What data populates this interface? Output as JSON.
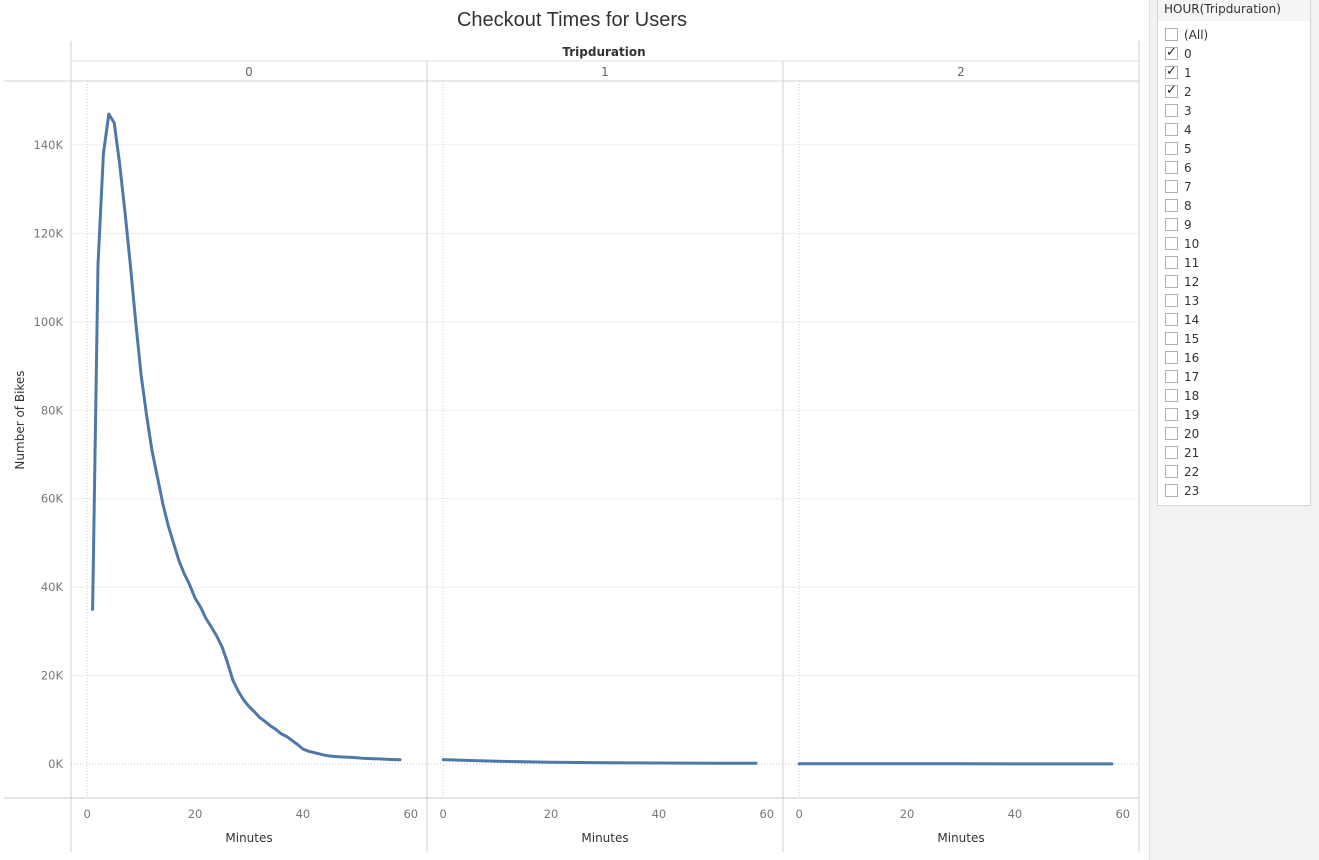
{
  "chart_data": {
    "type": "line",
    "title": "Checkout Times for Users",
    "column_header": "Tripduration",
    "ylabel": "Number of Bikes",
    "xlabel": "Minutes",
    "ylim": [
      0,
      155000
    ],
    "xlim": [
      -3,
      63
    ],
    "y_ticks": [
      {
        "value": 0,
        "label": "0K"
      },
      {
        "value": 20000,
        "label": "20K"
      },
      {
        "value": 40000,
        "label": "40K"
      },
      {
        "value": 60000,
        "label": "60K"
      },
      {
        "value": 80000,
        "label": "80K"
      },
      {
        "value": 100000,
        "label": "100K"
      },
      {
        "value": 120000,
        "label": "120K"
      },
      {
        "value": 140000,
        "label": "140K"
      }
    ],
    "x_ticks": [
      {
        "value": 0,
        "label": "0"
      },
      {
        "value": 20,
        "label": "20"
      },
      {
        "value": 40,
        "label": "40"
      },
      {
        "value": 60,
        "label": "60"
      }
    ],
    "line_color": "#4e79a7",
    "grid": true,
    "series": [
      {
        "name": "0",
        "x": [
          1,
          2,
          3,
          4,
          5,
          6,
          7,
          8,
          9,
          10,
          11,
          12,
          13,
          14,
          15,
          16,
          17,
          18,
          19,
          20,
          21,
          22,
          23,
          24,
          25,
          26,
          27,
          28,
          29,
          30,
          31,
          32,
          33,
          34,
          35,
          36,
          37,
          38,
          39,
          40,
          41,
          42,
          43,
          44,
          45,
          46,
          47,
          48,
          49,
          50,
          51,
          52,
          53,
          54,
          55,
          56,
          57,
          58
        ],
        "y": [
          35000,
          113000,
          138000,
          147000,
          145000,
          136000,
          125000,
          113000,
          100000,
          88000,
          79000,
          71000,
          65000,
          59000,
          54000,
          50000,
          46000,
          43000,
          40500,
          37500,
          35500,
          33000,
          31000,
          29000,
          26500,
          23000,
          19000,
          16500,
          14500,
          13000,
          11800,
          10500,
          9600,
          8600,
          7800,
          6800,
          6200,
          5300,
          4400,
          3400,
          2900,
          2600,
          2300,
          2000,
          1800,
          1700,
          1600,
          1550,
          1500,
          1400,
          1300,
          1250,
          1200,
          1150,
          1100,
          1050,
          1000,
          950
        ]
      },
      {
        "name": "1",
        "x": [
          0,
          5,
          10,
          15,
          20,
          25,
          30,
          35,
          40,
          45,
          50,
          55,
          58
        ],
        "y": [
          1000,
          800,
          600,
          500,
          400,
          350,
          300,
          250,
          220,
          200,
          180,
          160,
          150
        ]
      },
      {
        "name": "2",
        "x": [
          0,
          10,
          20,
          30,
          40,
          50,
          58
        ],
        "y": [
          50,
          45,
          40,
          35,
          30,
          25,
          20
        ]
      }
    ]
  },
  "filter": {
    "title": "HOUR(Tripduration)",
    "items": [
      {
        "label": "(All)",
        "checked": false
      },
      {
        "label": "0",
        "checked": true
      },
      {
        "label": "1",
        "checked": true
      },
      {
        "label": "2",
        "checked": true
      },
      {
        "label": "3",
        "checked": false
      },
      {
        "label": "4",
        "checked": false
      },
      {
        "label": "5",
        "checked": false
      },
      {
        "label": "6",
        "checked": false
      },
      {
        "label": "7",
        "checked": false
      },
      {
        "label": "8",
        "checked": false
      },
      {
        "label": "9",
        "checked": false
      },
      {
        "label": "10",
        "checked": false
      },
      {
        "label": "11",
        "checked": false
      },
      {
        "label": "12",
        "checked": false
      },
      {
        "label": "13",
        "checked": false
      },
      {
        "label": "14",
        "checked": false
      },
      {
        "label": "15",
        "checked": false
      },
      {
        "label": "16",
        "checked": false
      },
      {
        "label": "17",
        "checked": false
      },
      {
        "label": "18",
        "checked": false
      },
      {
        "label": "19",
        "checked": false
      },
      {
        "label": "20",
        "checked": false
      },
      {
        "label": "21",
        "checked": false
      },
      {
        "label": "22",
        "checked": false
      },
      {
        "label": "23",
        "checked": false
      }
    ]
  }
}
